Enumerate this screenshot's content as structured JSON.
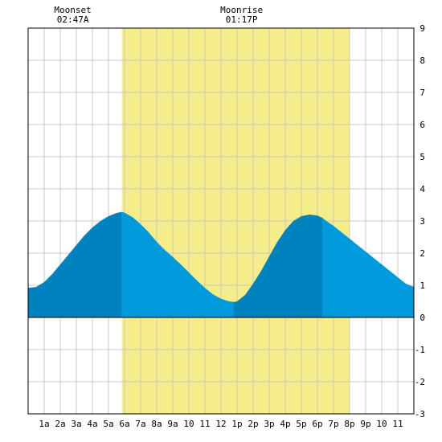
{
  "annotations": {
    "moonset": {
      "label": "Moonset",
      "time": "02:47A",
      "hour": 2.78
    },
    "moonrise": {
      "label": "Moonrise",
      "time": "01:17P",
      "hour": 13.28
    }
  },
  "chart_data": {
    "type": "area",
    "title": "",
    "xlabel": "",
    "ylabel": "",
    "xlim": [
      0,
      24
    ],
    "ylim": [
      -3,
      9
    ],
    "grid": true,
    "daylight": {
      "start": 5.83,
      "end": 19.97
    },
    "x_ticks": [
      {
        "x": 1,
        "label": "1a"
      },
      {
        "x": 2,
        "label": "2a"
      },
      {
        "x": 3,
        "label": "3a"
      },
      {
        "x": 4,
        "label": "4a"
      },
      {
        "x": 5,
        "label": "5a"
      },
      {
        "x": 6,
        "label": "6a"
      },
      {
        "x": 7,
        "label": "7a"
      },
      {
        "x": 8,
        "label": "8a"
      },
      {
        "x": 9,
        "label": "9a"
      },
      {
        "x": 10,
        "label": "10"
      },
      {
        "x": 11,
        "label": "11"
      },
      {
        "x": 12,
        "label": "12"
      },
      {
        "x": 13,
        "label": "1p"
      },
      {
        "x": 14,
        "label": "2p"
      },
      {
        "x": 15,
        "label": "3p"
      },
      {
        "x": 16,
        "label": "4p"
      },
      {
        "x": 17,
        "label": "5p"
      },
      {
        "x": 18,
        "label": "6p"
      },
      {
        "x": 19,
        "label": "7p"
      },
      {
        "x": 20,
        "label": "8p"
      },
      {
        "x": 21,
        "label": "9p"
      },
      {
        "x": 22,
        "label": "10"
      },
      {
        "x": 23,
        "label": "11"
      }
    ],
    "y_ticks": [
      {
        "y": 9,
        "label": "9"
      },
      {
        "y": 8,
        "label": "8"
      },
      {
        "y": 7,
        "label": "7"
      },
      {
        "y": 6,
        "label": "6"
      },
      {
        "y": 5,
        "label": "5"
      },
      {
        "y": 4,
        "label": "4"
      },
      {
        "y": 3,
        "label": "3"
      },
      {
        "y": 2,
        "label": "2"
      },
      {
        "y": 1,
        "label": "1"
      },
      {
        "y": 0,
        "label": "0"
      },
      {
        "y": -1,
        "label": "-1"
      },
      {
        "y": -2,
        "label": "-2"
      },
      {
        "y": -3,
        "label": "-3"
      }
    ],
    "tide_series": {
      "x": [
        0,
        0.5,
        1,
        1.5,
        2,
        2.5,
        3,
        3.5,
        4,
        4.5,
        5,
        5.5,
        5.8,
        6,
        6.5,
        7,
        7.5,
        8,
        8.5,
        9,
        9.5,
        10,
        10.5,
        11,
        11.5,
        12,
        12.5,
        12.8,
        13,
        13.5,
        14,
        14.5,
        15,
        15.5,
        16,
        16.5,
        17,
        17.5,
        18,
        18.3,
        18.5,
        19,
        19.5,
        20,
        20.5,
        21,
        21.5,
        22,
        22.5,
        23,
        23.5,
        24
      ],
      "y": [
        0.92,
        0.95,
        1.1,
        1.35,
        1.65,
        1.95,
        2.25,
        2.55,
        2.8,
        3.0,
        3.15,
        3.25,
        3.28,
        3.26,
        3.12,
        2.9,
        2.65,
        2.35,
        2.1,
        1.88,
        1.65,
        1.4,
        1.15,
        0.92,
        0.72,
        0.58,
        0.5,
        0.48,
        0.5,
        0.7,
        1.05,
        1.45,
        1.9,
        2.35,
        2.72,
        3.0,
        3.15,
        3.2,
        3.17,
        3.1,
        3.02,
        2.85,
        2.65,
        2.45,
        2.25,
        2.05,
        1.85,
        1.65,
        1.45,
        1.25,
        1.05,
        0.95
      ]
    },
    "shade_bands": [
      {
        "from": 0,
        "to": 5.8,
        "color": "#0082be"
      },
      {
        "from": 5.8,
        "to": 12.8,
        "color": "#0099dc"
      },
      {
        "from": 12.8,
        "to": 18.3,
        "color": "#0082be"
      },
      {
        "from": 18.3,
        "to": 24,
        "color": "#0099dc"
      }
    ],
    "colors": {
      "daylight": "#f5ec8a",
      "grid": "#c8c8c8",
      "frame": "#000000",
      "baseline": "#000000"
    }
  }
}
